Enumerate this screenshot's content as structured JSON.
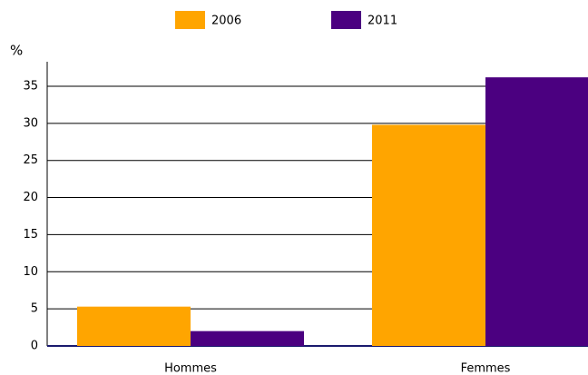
{
  "chart_data": {
    "type": "bar",
    "y_label": "%",
    "categories": [
      "Hommes",
      "Femmes"
    ],
    "series": [
      {
        "name": "2006",
        "color": "#ffa500",
        "values": [
          5.3,
          29.8
        ]
      },
      {
        "name": "2011",
        "color": "#4b0080",
        "values": [
          2.0,
          36.2
        ]
      }
    ],
    "ylim": [
      0,
      38.3
    ],
    "yticks": [
      0,
      5,
      10,
      15,
      20,
      25,
      30,
      35
    ],
    "grid": true
  }
}
